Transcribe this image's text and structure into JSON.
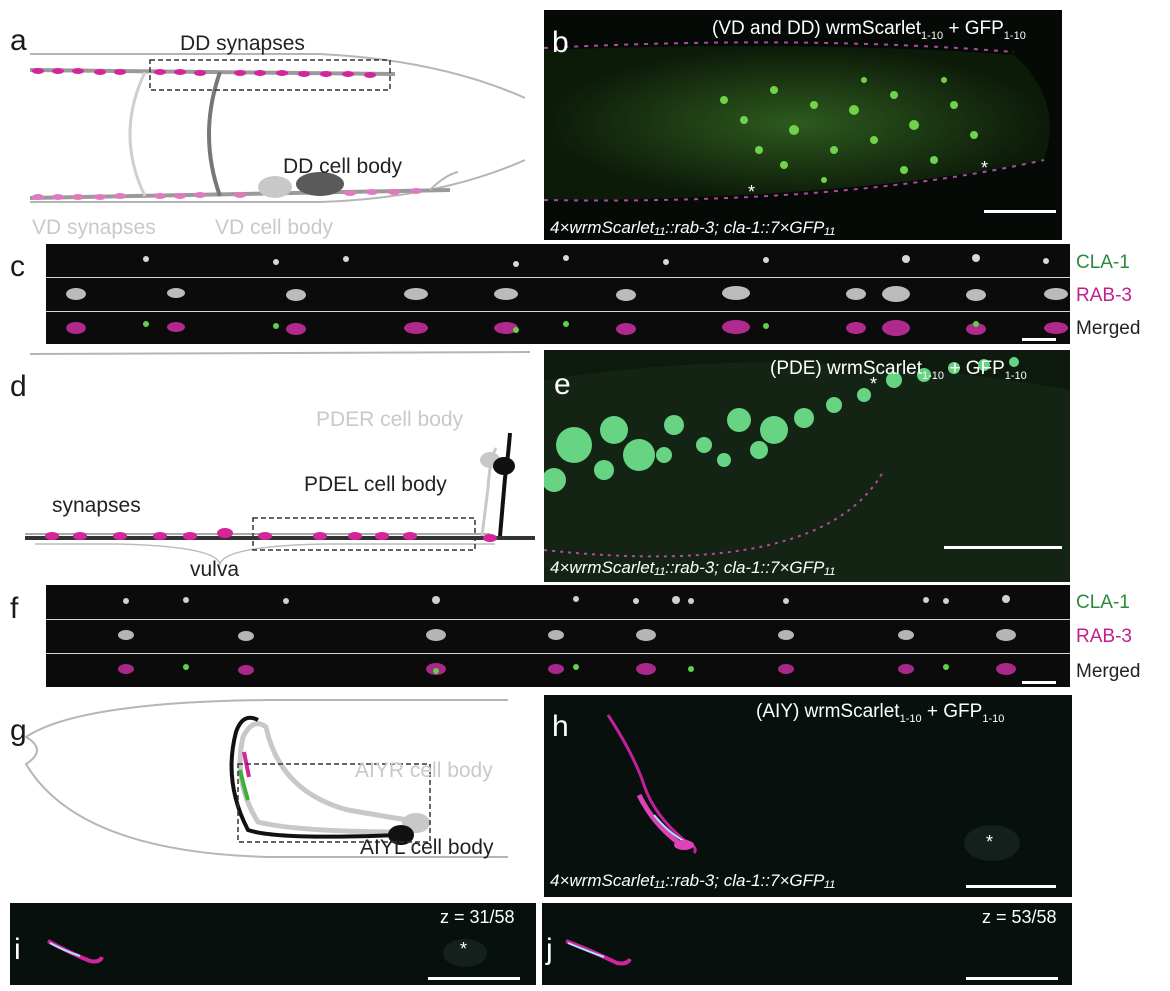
{
  "colors": {
    "magenta": "#d6249a",
    "green": "#3fae3a",
    "cla1_label": "#2a8a3a",
    "rab3_label": "#c0208a",
    "light_gray": "#c9c9c9",
    "dark_gray": "#555555"
  },
  "panel_a": {
    "letter": "a",
    "dd_synapses": "DD synapses",
    "dd_cell_body": "DD cell body",
    "vd_synapses": "VD synapses",
    "vd_cell_body": "VD cell body"
  },
  "panel_b": {
    "letter": "b",
    "title_prefix": "(VD and DD) wrmScarlet",
    "title_sub1": "1-10",
    "title_mid": " + GFP",
    "title_sub2": "1-10",
    "genotype": "4×wrmScarlet₁₁::rab-3; cla-1::7×GFP₁₁",
    "star": "*"
  },
  "panel_c": {
    "letter": "c",
    "channels": [
      "CLA-1",
      "RAB-3",
      "Merged"
    ]
  },
  "panel_d": {
    "letter": "d",
    "pder_cell_body": "PDER cell body",
    "pdel_cell_body": "PDEL cell body",
    "synapses": "synapses",
    "vulva": "vulva"
  },
  "panel_e": {
    "letter": "e",
    "title_prefix": "(PDE) wrmScarlet",
    "title_sub1": "1-10",
    "title_mid": " + GFP",
    "title_sub2": "1-10",
    "genotype": "4×wrmScarlet₁₁::rab-3; cla-1::7×GFP₁₁",
    "star": "*"
  },
  "panel_f": {
    "letter": "f",
    "channels": [
      "CLA-1",
      "RAB-3",
      "Merged"
    ]
  },
  "panel_g": {
    "letter": "g",
    "aiyr_cell_body": "AIYR cell body",
    "aiyl_cell_body": "AIYL cell body"
  },
  "panel_h": {
    "letter": "h",
    "title_prefix": "(AIY) wrmScarlet",
    "title_sub1": "1-10",
    "title_mid": " + GFP",
    "title_sub2": "1-10",
    "genotype": "4×wrmScarlet₁₁::rab-3; cla-1::7×GFP₁₁",
    "star": "*"
  },
  "panel_i": {
    "letter": "i",
    "z": "z = 31/58",
    "star": "*"
  },
  "panel_j": {
    "letter": "j",
    "z": "z = 53/58"
  }
}
